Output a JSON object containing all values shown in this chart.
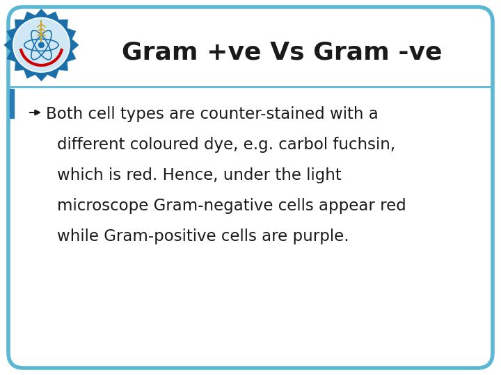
{
  "title": "Gram +ve Vs Gram -ve",
  "title_fontsize": 26,
  "title_color": "#1a1a1a",
  "body_fontsize": 16.5,
  "body_color": "#1a1a1a",
  "background_color": "#ffffff",
  "border_color": "#5bb8d4",
  "border_linewidth": 4.0,
  "slide_bg": "#ffffff",
  "divider_color": "#5bb8d4",
  "divider_linewidth": 2.0,
  "accent_bar_color": "#2a7ab8",
  "body_lines": [
    "➤ Both cell types are counter-stained with a",
    "   different coloured dye, e.g. carbol fuchsin,",
    "   which is red. Hence, under the light",
    "   microscope Gram-negative cells appear red",
    "   while Gram-positive cells are purple."
  ],
  "logo_outer_color": "#1a6fa8",
  "logo_inner_color": "#d0e8f5",
  "logo_gear_color": "#1a6fa8",
  "logo_red_color": "#cc0000"
}
